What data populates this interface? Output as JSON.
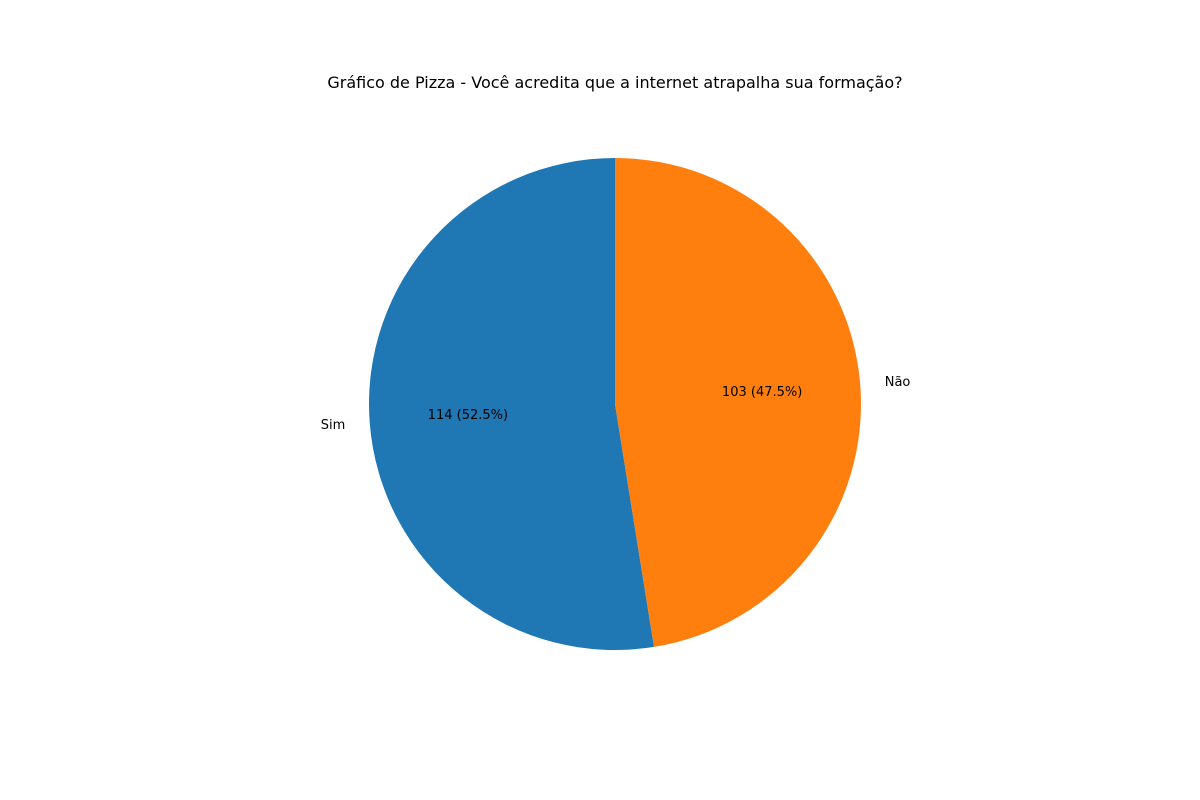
{
  "chart_data": {
    "type": "pie",
    "title": "Gráfico de Pizza - Você acredita que a internet atrapalha sua formação?",
    "categories": [
      "Sim",
      "Não"
    ],
    "values": [
      114,
      103
    ],
    "value_labels": [
      "114 (52.5%)",
      "103 (47.5%)"
    ],
    "colors": [
      "#1f77b4",
      "#ff7f0e"
    ],
    "start_angle_deg": 90,
    "direction": "counterclockwise"
  }
}
